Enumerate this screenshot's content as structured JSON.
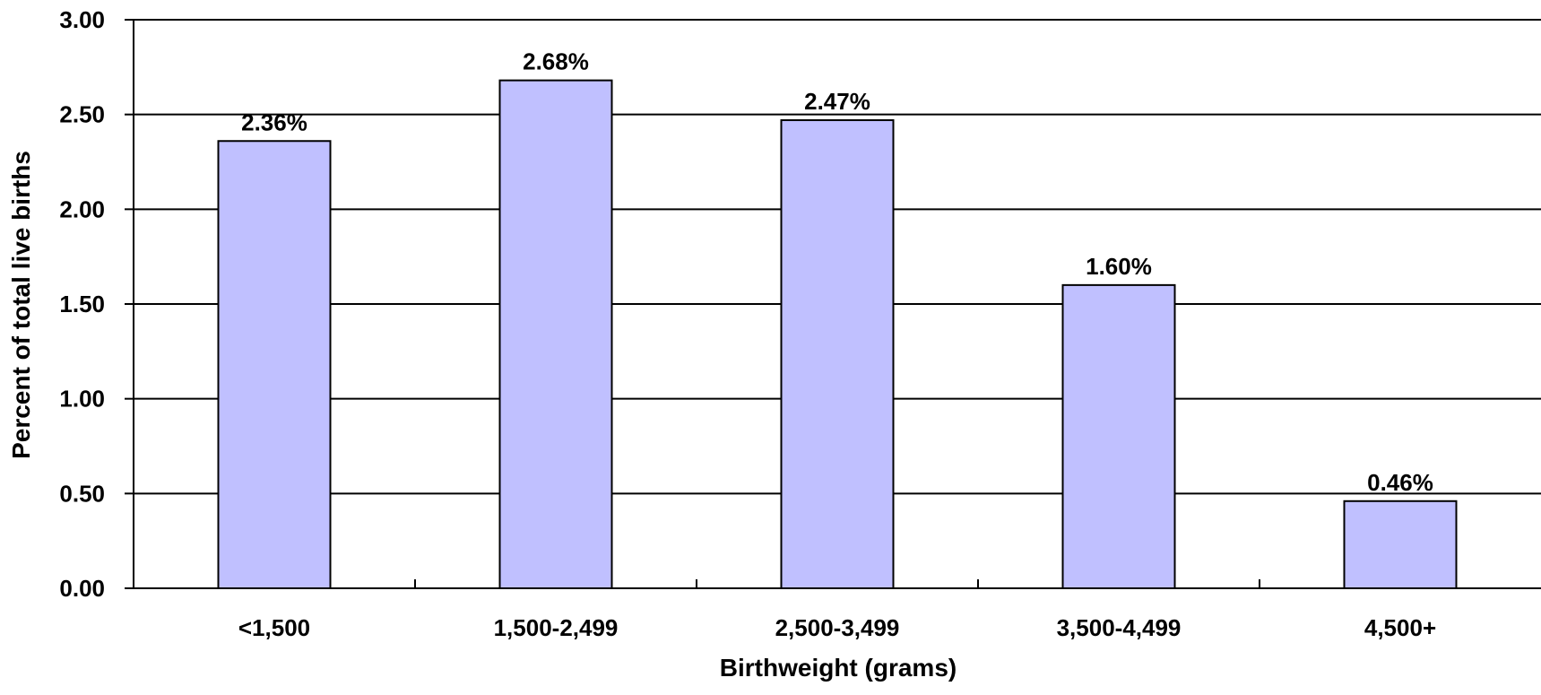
{
  "chart_data": {
    "type": "bar",
    "title": "",
    "xlabel": "Birthweight (grams)",
    "ylabel": "Percent of total live births",
    "categories": [
      "<1,500",
      "1,500-2,499",
      "2,500-3,499",
      "3,500-4,499",
      "4,500+"
    ],
    "values": [
      2.36,
      2.68,
      2.47,
      1.6,
      0.46
    ],
    "data_labels": [
      "2.36%",
      "2.68%",
      "2.47%",
      "1.60%",
      "0.46%"
    ],
    "ylim": [
      0,
      3
    ],
    "yticks": [
      0,
      0.5,
      1,
      1.5,
      2,
      2.5,
      3
    ],
    "ytick_labels": [
      "0.00",
      "0.50",
      "1.00",
      "1.50",
      "2.00",
      "2.50",
      "3.00"
    ],
    "grid": true,
    "legend": "none",
    "bar_color": "#c0c0ff",
    "bar_edge_color": "#000000"
  }
}
